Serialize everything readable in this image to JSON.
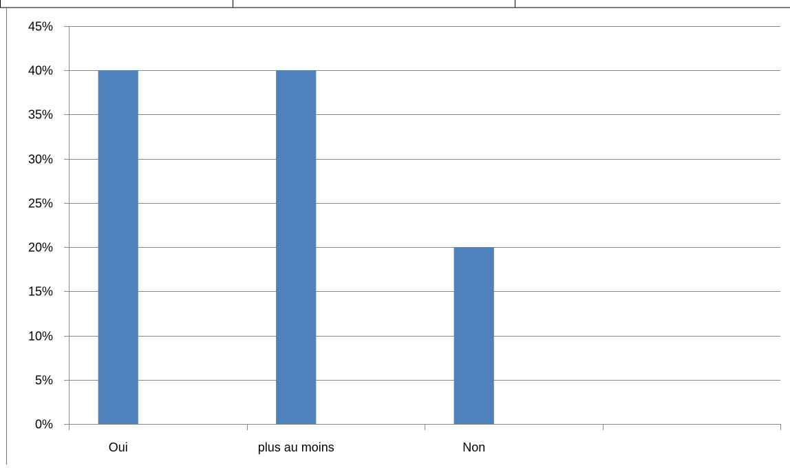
{
  "colors": {
    "bar": "#4F81BD",
    "gridline": "#868686",
    "axis": "#868686",
    "frame": "#000000",
    "text": "#000000"
  },
  "chart_data": {
    "type": "bar",
    "categories": [
      "Oui",
      "plus au moins",
      "Non",
      ""
    ],
    "values": [
      40,
      40,
      20,
      null
    ],
    "title": "",
    "xlabel": "",
    "ylabel": "",
    "ylim": [
      0,
      45
    ],
    "ytick_step": 5,
    "ytick_format": "percent",
    "grid": true,
    "legend": "none"
  }
}
